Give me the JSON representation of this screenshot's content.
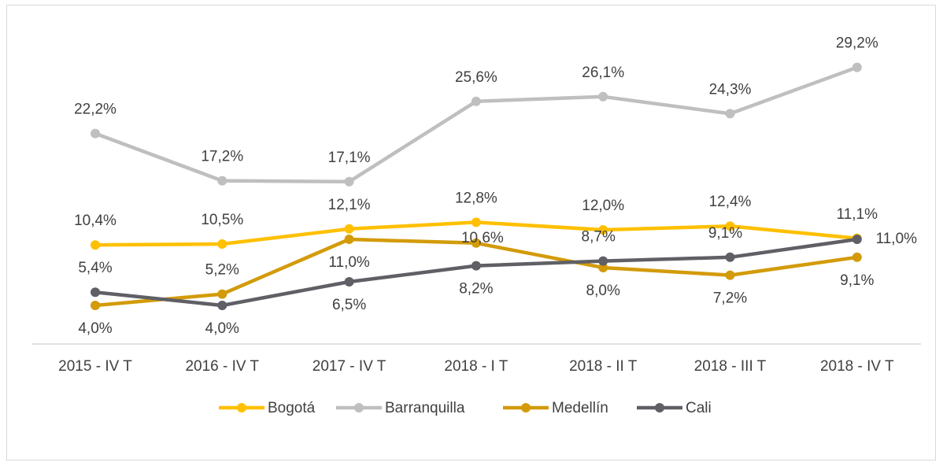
{
  "chart_data": {
    "type": "line",
    "categories": [
      "2015 - IV T",
      "2016 - IV T",
      "2017 - IV T",
      "2018 - I T",
      "2018 - II T",
      "2018 - III T",
      "2018 - IV T"
    ],
    "series": [
      {
        "name": "Bogotá",
        "color": "#FFC000",
        "values": [
          10.4,
          10.5,
          12.1,
          12.8,
          12.0,
          12.4,
          11.1
        ],
        "value_labels": [
          "10,4%",
          "10,5%",
          "12,1%",
          "12,8%",
          "12,0%",
          "12,4%",
          "11,1%"
        ]
      },
      {
        "name": "Barranquilla",
        "color": "#BFBFBF",
        "values": [
          22.2,
          17.2,
          17.1,
          25.6,
          26.1,
          24.3,
          29.2
        ],
        "value_labels": [
          "22,2%",
          "17,2%",
          "17,1%",
          "25,6%",
          "26,1%",
          "24,3%",
          "29,2%"
        ]
      },
      {
        "name": "Medellín",
        "color": "#D39B0A",
        "values": [
          4.0,
          5.2,
          11.0,
          10.6,
          8.0,
          7.2,
          9.1
        ],
        "value_labels": [
          "4,0%",
          "5,2%",
          "11,0%",
          "10,6%",
          "8,0%",
          "7,2%",
          "9,1%"
        ]
      },
      {
        "name": "Cali",
        "color": "#5F5F66",
        "values": [
          5.4,
          4.0,
          6.5,
          8.2,
          8.7,
          9.1,
          11.0
        ],
        "value_labels": [
          "5,4%",
          "4,0%",
          "6,5%",
          "8,2%",
          "8,7%",
          "9,1%",
          "11,0%"
        ]
      }
    ]
  }
}
